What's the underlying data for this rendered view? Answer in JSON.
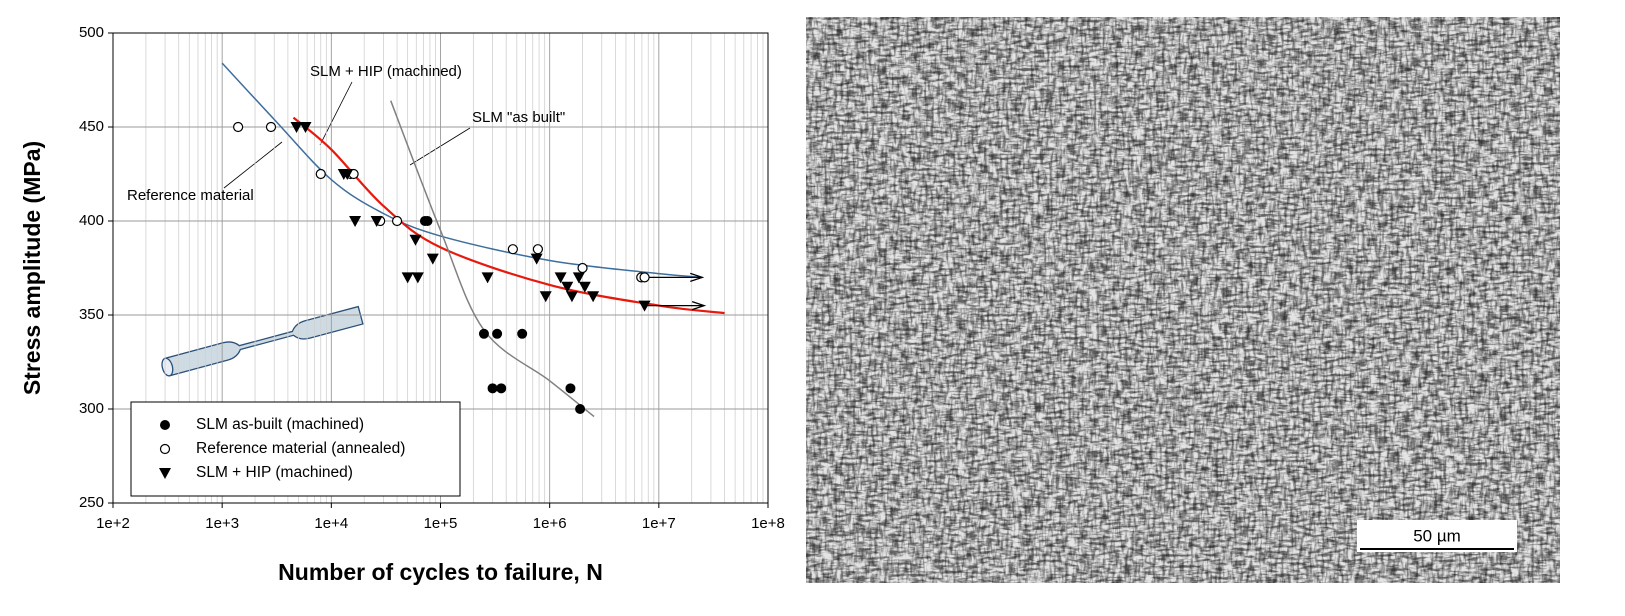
{
  "chart_data": {
    "type": "scatter",
    "xlabel": "Number of cycles to failure, N",
    "ylabel": "Stress amplitude (MPa)",
    "xscale": "log",
    "xlim": [
      100,
      100000000
    ],
    "ylim": [
      250,
      500
    ],
    "xticks": [
      {
        "value": 100,
        "label": "1e+2"
      },
      {
        "value": 1000,
        "label": "1e+3"
      },
      {
        "value": 10000,
        "label": "1e+4"
      },
      {
        "value": 100000,
        "label": "1e+5"
      },
      {
        "value": 1000000,
        "label": "1e+6"
      },
      {
        "value": 10000000,
        "label": "1e+7"
      },
      {
        "value": 100000000,
        "label": "1e+8"
      }
    ],
    "yticks": [
      250,
      300,
      350,
      400,
      450,
      500
    ],
    "grid": true,
    "legend": "lower left",
    "series": [
      {
        "name": "SLM as-built (machined)",
        "color": "#000000",
        "marker": "filled-circle",
        "x": [
          72000,
          76000,
          250000,
          330000,
          300000,
          360000,
          560000,
          1550000,
          1900000
        ],
        "values": [
          400,
          400,
          340,
          340,
          311,
          311,
          340,
          311,
          300
        ]
      },
      {
        "name": "Reference material (annealed)",
        "color": "#000000",
        "marker": "open-circle",
        "x": [
          1400,
          2800,
          8000,
          15000,
          16000,
          28000,
          40000,
          460000,
          780000,
          2000000,
          6900000,
          7400000
        ],
        "values": [
          450,
          450,
          425,
          425,
          425,
          400,
          400,
          385,
          385,
          375,
          370,
          370
        ]
      },
      {
        "name": "SLM + HIP (machined)",
        "color": "#000000",
        "marker": "triangle-down",
        "x": [
          4800,
          5800,
          13000,
          14000,
          16500,
          26000,
          59000,
          50000,
          62000,
          85000,
          270000,
          760000,
          920000,
          1260000,
          1450000,
          1600000,
          1850000,
          2100000,
          2500000,
          7400000
        ],
        "values": [
          450,
          450,
          425,
          425,
          400,
          400,
          390,
          370,
          370,
          380,
          370,
          380,
          360,
          370,
          365,
          360,
          370,
          365,
          360,
          355
        ]
      }
    ],
    "curves": [
      {
        "color": "#3d6e9e",
        "x": [
          1000,
          3000,
          10000,
          30000,
          100000,
          1000000,
          10000000,
          25000000
        ],
        "values": [
          484,
          454,
          422,
          404,
          392,
          379,
          372,
          370
        ]
      },
      {
        "color": "#e8180c",
        "x": [
          4500,
          10000,
          30000,
          100000,
          1000000,
          10000000,
          40000000
        ],
        "values": [
          455,
          438,
          408,
          386,
          366,
          355,
          351
        ]
      },
      {
        "color": "#808080",
        "x": [
          35000,
          100000,
          250000,
          1000000,
          2550000
        ],
        "values": [
          464,
          395,
          342,
          315,
          296
        ]
      }
    ],
    "runout_arrows": [
      {
        "x": [
          7000000,
          25000000
        ],
        "y": 370
      },
      {
        "x": [
          7500000,
          26000000
        ],
        "y": 355
      }
    ],
    "annotations": [
      "SLM + HIP (machined)",
      "SLM \"as built\"",
      "Reference material"
    ]
  },
  "micrograph": {
    "scale_bar": "50 µm"
  }
}
